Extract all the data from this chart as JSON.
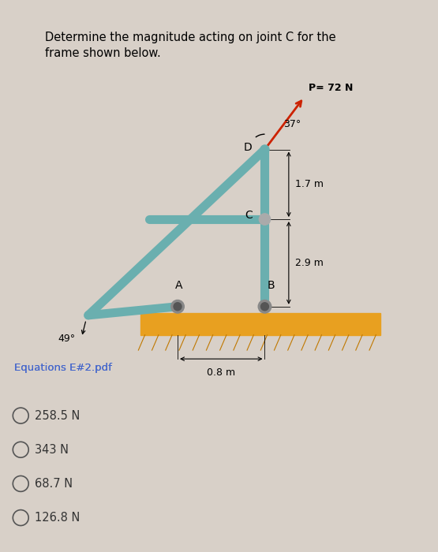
{
  "title": "Determine the magnitude acting on joint C for the\nframe shown below.",
  "title_fontsize": 10.5,
  "bg_color": "#d8d0c8",
  "frame_color": "#7ab8b8",
  "ground_color": "#e8a020",
  "answer_choices": [
    "258.5 N",
    "343 N",
    "68.7 N",
    "126.8 N"
  ],
  "link_text": "Equations E#2.pdf",
  "link_color": "#4466cc",
  "angle_top": "37°",
  "angle_bottom": "49°",
  "force_label": "P= 72 N",
  "dim_17": "1.7 m",
  "dim_29": "2.9 m",
  "dim_08": "0.8 m",
  "labels": [
    "D",
    "C",
    "A",
    "B"
  ],
  "frame_teal": "#6aafaf",
  "arrow_red": "#cc2200"
}
